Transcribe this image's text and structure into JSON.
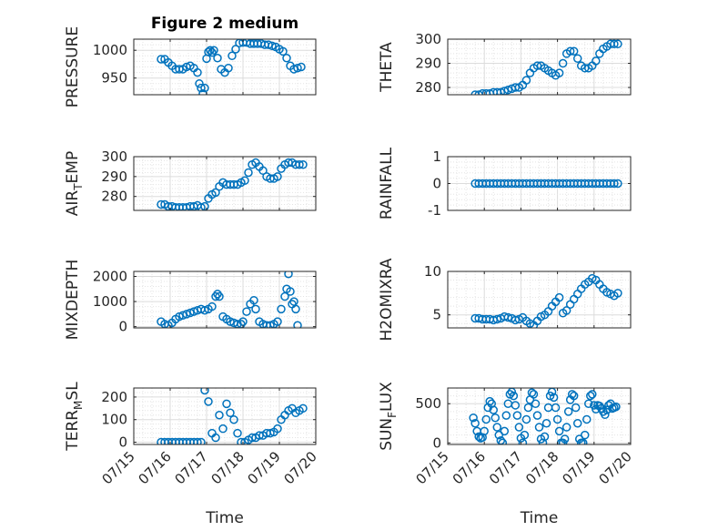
{
  "figure": {
    "title": "Figure 2 medium"
  },
  "chart_data": [
    {
      "type": "scatter",
      "title": "Figure 2 medium",
      "xlabel": "",
      "ylabel": "PRESSURE",
      "xlim": [
        "07/15",
        "07/20"
      ],
      "ylim": [
        920,
        1020
      ],
      "yticks": [
        "950",
        "1000"
      ],
      "ytick_values": [
        950,
        1000
      ],
      "xtick_labels": [
        "07/15",
        "07/16",
        "07/17",
        "07/18",
        "07/19",
        "07/20"
      ],
      "show_xtick_labels": false,
      "grid": true,
      "marker": "open-circle",
      "color": "#0072BD",
      "x": [
        15.75,
        15.85,
        15.95,
        16.05,
        16.15,
        16.25,
        16.35,
        16.45,
        16.55,
        16.65,
        16.75,
        16.8,
        16.85,
        16.9,
        16.95,
        17.0,
        17.05,
        17.1,
        17.15,
        17.2,
        17.3,
        17.4,
        17.5,
        17.6,
        17.7,
        17.8,
        17.9,
        18.0,
        18.1,
        18.2,
        18.3,
        18.4,
        18.5,
        18.6,
        18.7,
        18.8,
        18.9,
        19.0,
        19.1,
        19.2,
        19.3,
        19.4,
        19.5,
        19.6
      ],
      "y": [
        984,
        984,
        978,
        972,
        966,
        966,
        966,
        970,
        972,
        968,
        960,
        940,
        932,
        922,
        932,
        985,
        997,
        1000,
        996,
        1000,
        986,
        966,
        960,
        968,
        990,
        1002,
        1013,
        1014,
        1014,
        1012,
        1012,
        1012,
        1012,
        1010,
        1010,
        1008,
        1006,
        1002,
        998,
        986,
        972,
        966,
        968,
        970
      ]
    },
    {
      "type": "scatter",
      "title": "",
      "xlabel": "",
      "ylabel": "THETA",
      "xlim": [
        "07/15",
        "07/20"
      ],
      "ylim": [
        277,
        300
      ],
      "yticks": [
        "280",
        "290",
        "300"
      ],
      "ytick_values": [
        280,
        290,
        300
      ],
      "xtick_labels": [
        "07/15",
        "07/16",
        "07/17",
        "07/18",
        "07/19",
        "07/20"
      ],
      "show_xtick_labels": false,
      "grid": true,
      "marker": "open-circle",
      "color": "#0072BD",
      "x": [
        15.75,
        15.85,
        15.95,
        16.05,
        16.15,
        16.25,
        16.35,
        16.45,
        16.55,
        16.65,
        16.75,
        16.85,
        16.95,
        17.05,
        17.15,
        17.25,
        17.35,
        17.45,
        17.55,
        17.65,
        17.75,
        17.85,
        17.95,
        18.05,
        18.15,
        18.25,
        18.35,
        18.45,
        18.55,
        18.65,
        18.75,
        18.85,
        18.95,
        19.05,
        19.15,
        19.25,
        19.35,
        19.45,
        19.55,
        19.65
      ],
      "y": [
        277,
        277,
        277.5,
        277.5,
        277.5,
        278,
        278,
        278,
        278.5,
        279,
        279.5,
        280,
        280,
        281,
        283,
        286,
        288,
        289,
        289,
        288,
        287,
        286,
        285,
        286,
        290,
        294,
        295,
        295,
        292,
        289,
        288,
        288,
        289,
        291,
        294,
        296,
        297,
        298,
        298,
        298
      ]
    },
    {
      "type": "scatter",
      "title": "",
      "xlabel": "",
      "ylabel": "AIR_TEMP",
      "xlim": [
        "07/15",
        "07/20"
      ],
      "ylim": [
        273,
        300
      ],
      "yticks": [
        "280",
        "290",
        "300"
      ],
      "ytick_values": [
        280,
        290,
        300
      ],
      "xtick_labels": [
        "07/15",
        "07/16",
        "07/17",
        "07/18",
        "07/19",
        "07/20"
      ],
      "show_xtick_labels": false,
      "grid": true,
      "marker": "open-circle",
      "color": "#0072BD",
      "x": [
        15.75,
        15.85,
        15.95,
        16.05,
        16.15,
        16.25,
        16.35,
        16.45,
        16.55,
        16.65,
        16.75,
        16.85,
        16.95,
        17.05,
        17.15,
        17.25,
        17.35,
        17.45,
        17.55,
        17.65,
        17.75,
        17.85,
        17.95,
        18.05,
        18.15,
        18.25,
        18.35,
        18.45,
        18.55,
        18.65,
        18.75,
        18.85,
        18.95,
        19.05,
        19.15,
        19.25,
        19.35,
        19.45,
        19.55,
        19.65
      ],
      "y": [
        276,
        276,
        275,
        275,
        274.5,
        274.5,
        274.5,
        274.5,
        275,
        275,
        275.5,
        274.5,
        275,
        279,
        281,
        282,
        285,
        287,
        286,
        286,
        286,
        286,
        287,
        288,
        292,
        296,
        297,
        295,
        293,
        290,
        289,
        289,
        290,
        294,
        296,
        297,
        297,
        296,
        296,
        296
      ]
    },
    {
      "type": "scatter",
      "title": "",
      "xlabel": "",
      "ylabel": "RAINFALL",
      "xlim": [
        "07/15",
        "07/20"
      ],
      "ylim": [
        -1,
        1
      ],
      "yticks": [
        "-1",
        "0",
        "1"
      ],
      "ytick_values": [
        -1,
        0,
        1
      ],
      "xtick_labels": [
        "07/15",
        "07/16",
        "07/17",
        "07/18",
        "07/19",
        "07/20"
      ],
      "show_xtick_labels": false,
      "grid": true,
      "marker": "open-circle",
      "color": "#0072BD",
      "x": [
        15.75,
        15.85,
        15.95,
        16.05,
        16.15,
        16.25,
        16.35,
        16.45,
        16.55,
        16.65,
        16.75,
        16.85,
        16.95,
        17.05,
        17.15,
        17.25,
        17.35,
        17.45,
        17.55,
        17.65,
        17.75,
        17.85,
        17.95,
        18.05,
        18.15,
        18.25,
        18.35,
        18.45,
        18.55,
        18.65,
        18.75,
        18.85,
        18.95,
        19.05,
        19.15,
        19.25,
        19.35,
        19.45,
        19.55,
        19.65
      ],
      "y": [
        0,
        0,
        0,
        0,
        0,
        0,
        0,
        0,
        0,
        0,
        0,
        0,
        0,
        0,
        0,
        0,
        0,
        0,
        0,
        0,
        0,
        0,
        0,
        0,
        0,
        0,
        0,
        0,
        0,
        0,
        0,
        0,
        0,
        0,
        0,
        0,
        0,
        0,
        0,
        0
      ]
    },
    {
      "type": "scatter",
      "title": "",
      "xlabel": "",
      "ylabel": "MIXDEPTH",
      "xlim": [
        "07/15",
        "07/20"
      ],
      "ylim": [
        -50,
        2200
      ],
      "yticks": [
        "0",
        "1000",
        "2000"
      ],
      "ytick_values": [
        0,
        1000,
        2000
      ],
      "xtick_labels": [
        "07/15",
        "07/16",
        "07/17",
        "07/18",
        "07/19",
        "07/20"
      ],
      "show_xtick_labels": false,
      "grid": true,
      "marker": "open-circle",
      "color": "#0072BD",
      "x": [
        15.75,
        15.85,
        15.95,
        16.05,
        16.15,
        16.25,
        16.35,
        16.45,
        16.55,
        16.65,
        16.75,
        16.85,
        16.95,
        17.05,
        17.15,
        17.25,
        17.3,
        17.35,
        17.45,
        17.55,
        17.65,
        17.75,
        17.85,
        17.95,
        18.0,
        18.1,
        18.2,
        18.3,
        18.35,
        18.45,
        18.55,
        18.65,
        18.75,
        18.85,
        18.95,
        19.05,
        19.15,
        19.2,
        19.25,
        19.3,
        19.35,
        19.4,
        19.45,
        19.5
      ],
      "y": [
        200,
        100,
        50,
        150,
        300,
        400,
        450,
        500,
        550,
        600,
        650,
        700,
        650,
        700,
        800,
        1200,
        1300,
        1200,
        400,
        300,
        200,
        150,
        100,
        100,
        200,
        600,
        900,
        1050,
        700,
        200,
        100,
        50,
        50,
        100,
        200,
        700,
        1200,
        1500,
        2100,
        1400,
        900,
        1000,
        700,
        50
      ]
    },
    {
      "type": "scatter",
      "title": "",
      "xlabel": "",
      "ylabel": "H2OMIXRA",
      "xlim": [
        "07/15",
        "07/20"
      ],
      "ylim": [
        3.5,
        10
      ],
      "yticks": [
        "5",
        "10"
      ],
      "ytick_values": [
        5,
        10
      ],
      "xtick_labels": [
        "07/15",
        "07/16",
        "07/17",
        "07/18",
        "07/19",
        "07/20"
      ],
      "show_xtick_labels": false,
      "grid": true,
      "marker": "open-circle",
      "color": "#0072BD",
      "x": [
        15.75,
        15.85,
        15.95,
        16.05,
        16.15,
        16.25,
        16.35,
        16.45,
        16.55,
        16.65,
        16.75,
        16.85,
        16.95,
        17.05,
        17.15,
        17.25,
        17.35,
        17.45,
        17.55,
        17.65,
        17.75,
        17.85,
        17.95,
        18.05,
        18.15,
        18.25,
        18.35,
        18.45,
        18.55,
        18.65,
        18.75,
        18.85,
        18.95,
        19.05,
        19.15,
        19.25,
        19.35,
        19.45,
        19.55,
        19.65
      ],
      "y": [
        4.6,
        4.6,
        4.5,
        4.5,
        4.5,
        4.4,
        4.5,
        4.6,
        4.8,
        4.7,
        4.6,
        4.4,
        4.5,
        4.7,
        4.3,
        4.0,
        3.8,
        4.3,
        4.8,
        5.0,
        5.4,
        6.0,
        6.5,
        7.0,
        5.2,
        5.5,
        6.2,
        6.8,
        7.4,
        8.0,
        8.5,
        8.8,
        9.2,
        9.0,
        8.5,
        8.0,
        7.6,
        7.4,
        7.2,
        7.5
      ]
    },
    {
      "type": "scatter",
      "title": "",
      "xlabel": "Time",
      "ylabel": "TERR_MSL",
      "xlim": [
        "07/15",
        "07/20"
      ],
      "ylim": [
        -10,
        240
      ],
      "yticks": [
        "0",
        "100",
        "200"
      ],
      "ytick_values": [
        0,
        100,
        200
      ],
      "xtick_labels": [
        "07/15",
        "07/16",
        "07/17",
        "07/18",
        "07/19",
        "07/20"
      ],
      "show_xtick_labels": true,
      "grid": true,
      "marker": "open-circle",
      "color": "#0072BD",
      "x": [
        15.75,
        15.85,
        15.95,
        16.05,
        16.15,
        16.25,
        16.35,
        16.45,
        16.55,
        16.65,
        16.75,
        16.85,
        16.95,
        17.05,
        17.15,
        17.25,
        17.35,
        17.45,
        17.55,
        17.65,
        17.75,
        17.85,
        17.95,
        18.05,
        18.15,
        18.25,
        18.35,
        18.45,
        18.55,
        18.65,
        18.75,
        18.85,
        18.95,
        19.05,
        19.15,
        19.25,
        19.35,
        19.45,
        19.55,
        19.65
      ],
      "y": [
        0,
        0,
        0,
        0,
        0,
        0,
        0,
        0,
        0,
        0,
        0,
        0,
        230,
        180,
        40,
        20,
        120,
        60,
        170,
        130,
        100,
        40,
        0,
        0,
        10,
        20,
        20,
        30,
        30,
        40,
        40,
        45,
        60,
        100,
        120,
        140,
        150,
        130,
        140,
        150
      ]
    },
    {
      "type": "scatter",
      "title": "",
      "xlabel": "Time",
      "ylabel": "SUN_FLUX",
      "xlim": [
        "07/15",
        "07/20"
      ],
      "ylim": [
        -20,
        700
      ],
      "yticks": [
        "0",
        "500"
      ],
      "ytick_values": [
        0,
        500
      ],
      "xtick_labels": [
        "07/15",
        "07/16",
        "07/17",
        "07/18",
        "07/19",
        "07/20"
      ],
      "show_xtick_labels": true,
      "grid": true,
      "marker": "open-circle",
      "color": "#0072BD",
      "x": [
        15.7,
        15.75,
        15.8,
        15.85,
        15.9,
        15.95,
        16.0,
        16.05,
        16.1,
        16.15,
        16.2,
        16.25,
        16.3,
        16.35,
        16.4,
        16.45,
        16.5,
        16.55,
        16.6,
        16.65,
        16.7,
        16.75,
        16.8,
        16.85,
        16.9,
        16.95,
        17.0,
        17.05,
        17.1,
        17.15,
        17.2,
        17.25,
        17.3,
        17.35,
        17.4,
        17.45,
        17.5,
        17.55,
        17.6,
        17.65,
        17.7,
        17.75,
        17.8,
        17.85,
        17.9,
        17.95,
        18.0,
        18.05,
        18.1,
        18.15,
        18.2,
        18.25,
        18.3,
        18.35,
        18.4,
        18.45,
        18.5,
        18.55,
        18.6,
        18.65,
        18.7,
        18.75,
        18.8,
        18.85,
        18.9,
        18.95,
        19.0,
        19.05,
        19.1,
        19.15,
        19.2,
        19.25,
        19.3,
        19.35,
        19.4,
        19.45,
        19.5,
        19.55,
        19.6
      ],
      "y": [
        320,
        250,
        150,
        80,
        60,
        70,
        150,
        300,
        450,
        530,
        500,
        420,
        320,
        200,
        100,
        30,
        0,
        150,
        350,
        500,
        620,
        650,
        600,
        480,
        350,
        200,
        60,
        0,
        100,
        300,
        450,
        550,
        640,
        620,
        500,
        350,
        200,
        50,
        0,
        80,
        250,
        450,
        600,
        650,
        580,
        450,
        300,
        150,
        0,
        0,
        50,
        200,
        400,
        550,
        620,
        600,
        450,
        250,
        50,
        0,
        0,
        100,
        300,
        500,
        600,
        620,
        480,
        430,
        480,
        470,
        440,
        400,
        360,
        420,
        480,
        500,
        440,
        450,
        460
      ]
    }
  ]
}
